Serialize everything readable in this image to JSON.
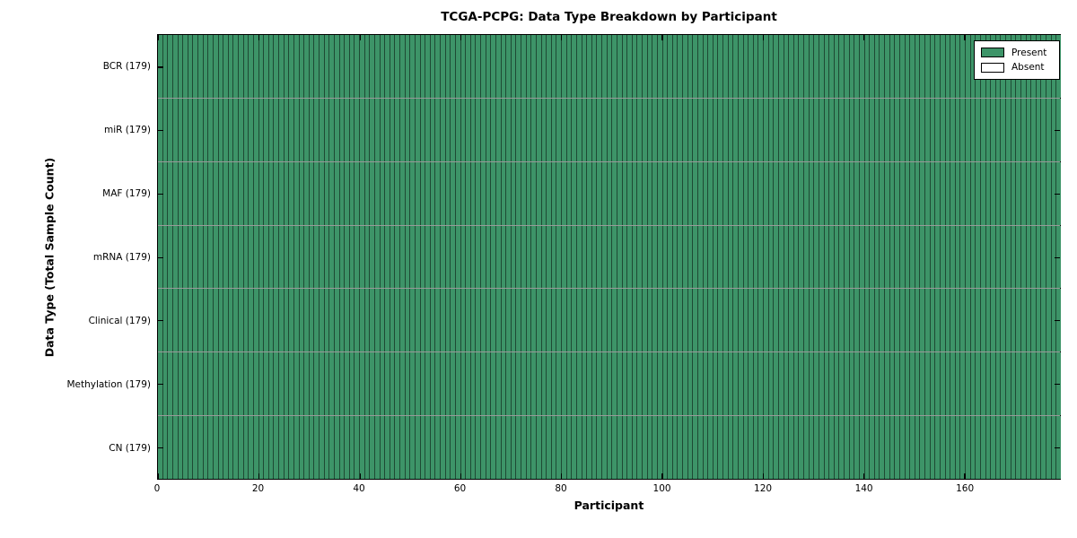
{
  "chart_data": {
    "type": "heatmap",
    "title": "TCGA-PCPG: Data Type Breakdown by Participant",
    "xlabel": "Participant",
    "ylabel": "Data Type (Total Sample Count)",
    "x_range": [
      0,
      179
    ],
    "x_ticks": [
      0,
      20,
      40,
      60,
      80,
      100,
      120,
      140,
      160
    ],
    "n_participants": 179,
    "rows": [
      {
        "label": "BCR (179)",
        "data_type": "BCR",
        "total_samples": 179,
        "present_count": 179,
        "absent_count": 0
      },
      {
        "label": "miR (179)",
        "data_type": "miR",
        "total_samples": 179,
        "present_count": 179,
        "absent_count": 0
      },
      {
        "label": "MAF (179)",
        "data_type": "MAF",
        "total_samples": 179,
        "present_count": 179,
        "absent_count": 0
      },
      {
        "label": "mRNA (179)",
        "data_type": "mRNA",
        "total_samples": 179,
        "present_count": 179,
        "absent_count": 0
      },
      {
        "label": "Clinical (179)",
        "data_type": "Clinical",
        "total_samples": 179,
        "present_count": 179,
        "absent_count": 0
      },
      {
        "label": "Methylation (179)",
        "data_type": "Methylation",
        "total_samples": 179,
        "present_count": 179,
        "absent_count": 0
      },
      {
        "label": "CN (179)",
        "data_type": "CN",
        "total_samples": 179,
        "present_count": 179,
        "absent_count": 0
      }
    ],
    "legend": {
      "position": "upper-right",
      "entries": [
        {
          "label": "Present",
          "color": "#3D9468"
        },
        {
          "label": "Absent",
          "color": "#FFFFFF"
        }
      ]
    },
    "colors": {
      "present": "#3D9468",
      "absent": "#FFFFFF",
      "edge": "#000000",
      "axis": "#000000",
      "background": "#FFFFFF"
    },
    "grid": false
  }
}
